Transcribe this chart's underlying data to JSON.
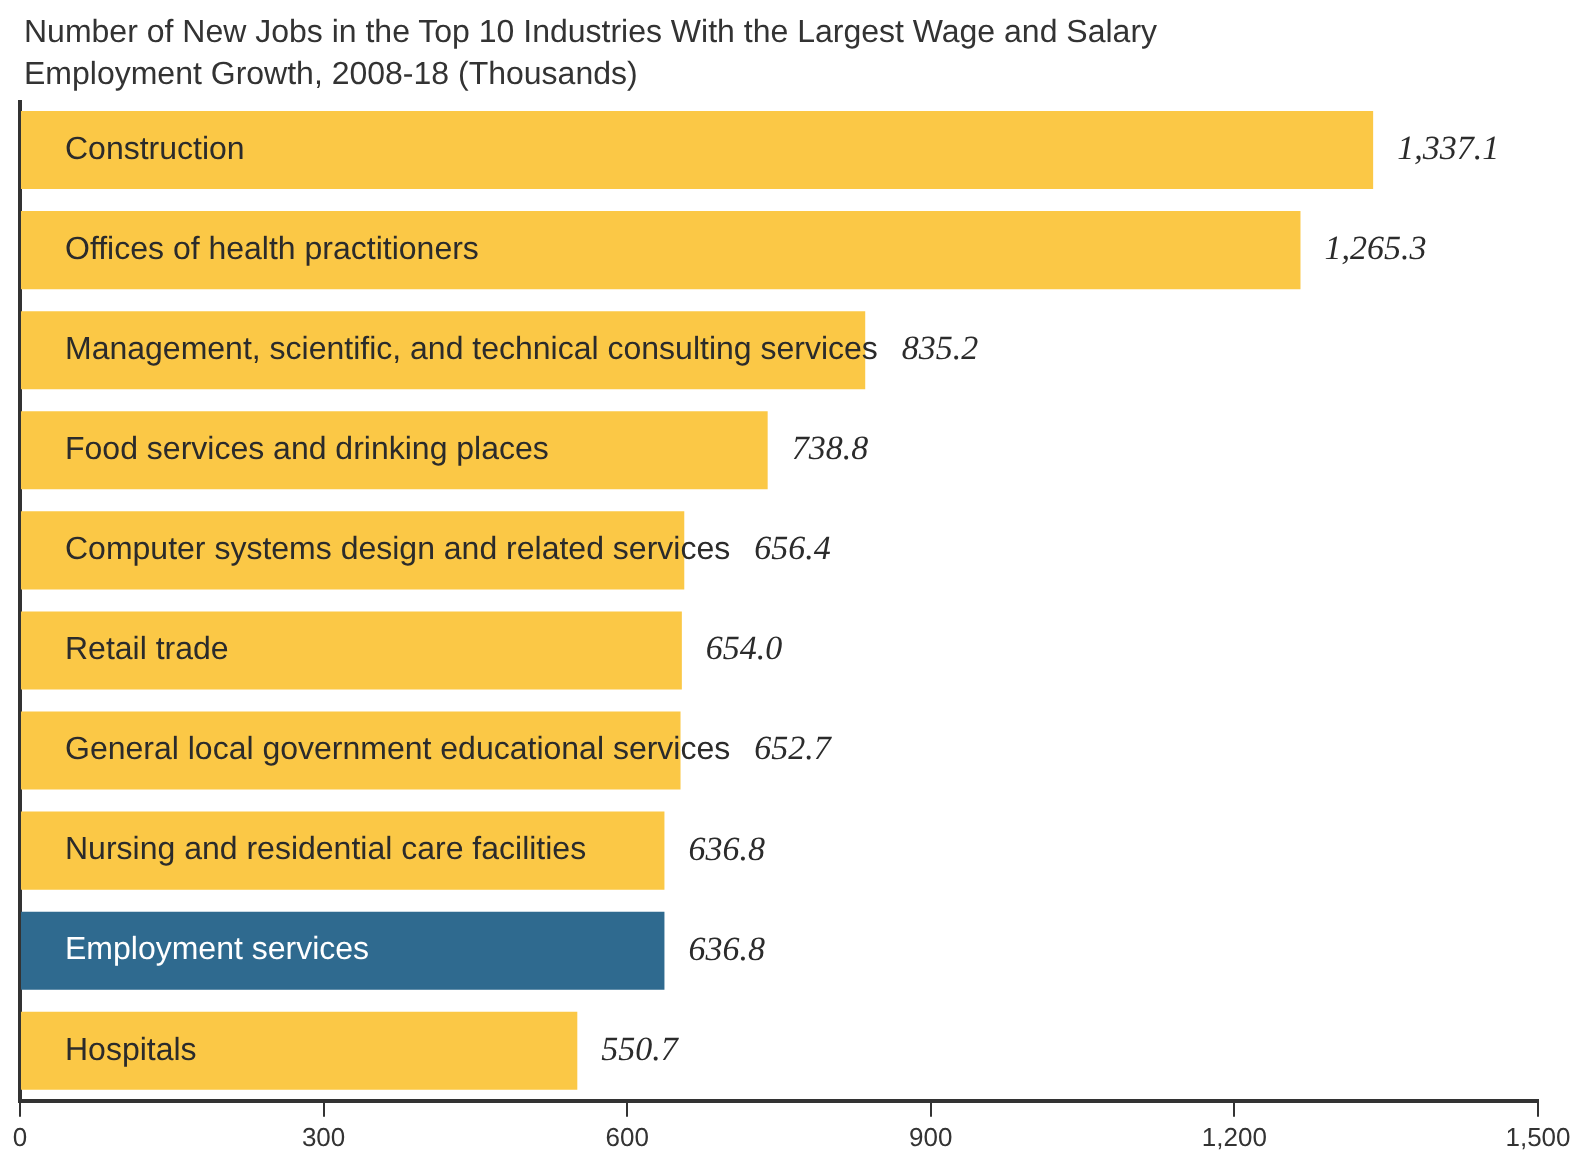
{
  "chart_data": {
    "type": "bar",
    "orientation": "horizontal",
    "title": "Number of New Jobs in the Top 10 Industries With the Largest Wage and Salary Employment Growth, 2008-18 (Thousands)",
    "categories": [
      "Construction",
      "Offices of health practitioners",
      "Management, scientific, and technical consulting services",
      "Food services and drinking places",
      "Computer systems design and related services",
      "Retail trade",
      "General local government educational services",
      "Nursing and residential care facilities",
      "Employment services",
      "Hospitals"
    ],
    "values": [
      1337.1,
      1265.3,
      835.2,
      738.8,
      656.4,
      654.0,
      652.7,
      636.8,
      636.8,
      550.7
    ],
    "value_labels": [
      "1,337.1",
      "1,265.3",
      "835.2",
      "738.8",
      "656.4",
      "654.0",
      "652.7",
      "636.8",
      "636.8",
      "550.7"
    ],
    "colors": [
      "#fbc846",
      "#fbc846",
      "#fbc846",
      "#fbc846",
      "#fbc846",
      "#fbc846",
      "#fbc846",
      "#fbc846",
      "#2f6a8f",
      "#fbc846"
    ],
    "xlim": [
      0,
      1500
    ],
    "xticks": [
      0,
      300,
      600,
      900,
      {
        "value": 1200,
        "label": "1,200"
      },
      {
        "value": 1500,
        "label": "1,500"
      }
    ],
    "grid": false,
    "legend": false
  }
}
